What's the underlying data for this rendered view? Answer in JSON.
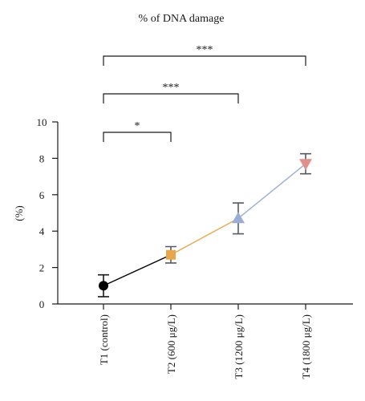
{
  "chart_data": {
    "type": "line",
    "title": "% of DNA damage",
    "xlabel": "",
    "ylabel": "(%)",
    "ylim": [
      0,
      10
    ],
    "yticks": [
      0,
      2,
      4,
      6,
      8,
      10
    ],
    "grid": false,
    "legend": "none",
    "categories": [
      "T1 (control)",
      "T2 (600 μg/L)",
      "T3 (1200 μg/L)",
      "T4 (1800 μg/L)"
    ],
    "series": [
      {
        "values": [
          1.0,
          2.7,
          4.7,
          7.7
        ],
        "error": [
          0.6,
          0.45,
          0.85,
          0.55
        ],
        "markers": [
          "circle",
          "square",
          "triangle-up",
          "triangle-down"
        ],
        "marker_colors": [
          "#000000",
          "#E8A849",
          "#9AAED3",
          "#E48E8C"
        ],
        "segment_colors": [
          "#000000",
          "#E8A849",
          "#9AAED3"
        ]
      }
    ],
    "annotations": [
      {
        "from": 0,
        "to": 1,
        "label": "*",
        "level": 1
      },
      {
        "from": 0,
        "to": 2,
        "label": "***",
        "level": 2
      },
      {
        "from": 0,
        "to": 3,
        "label": "***",
        "level": 3
      }
    ]
  }
}
